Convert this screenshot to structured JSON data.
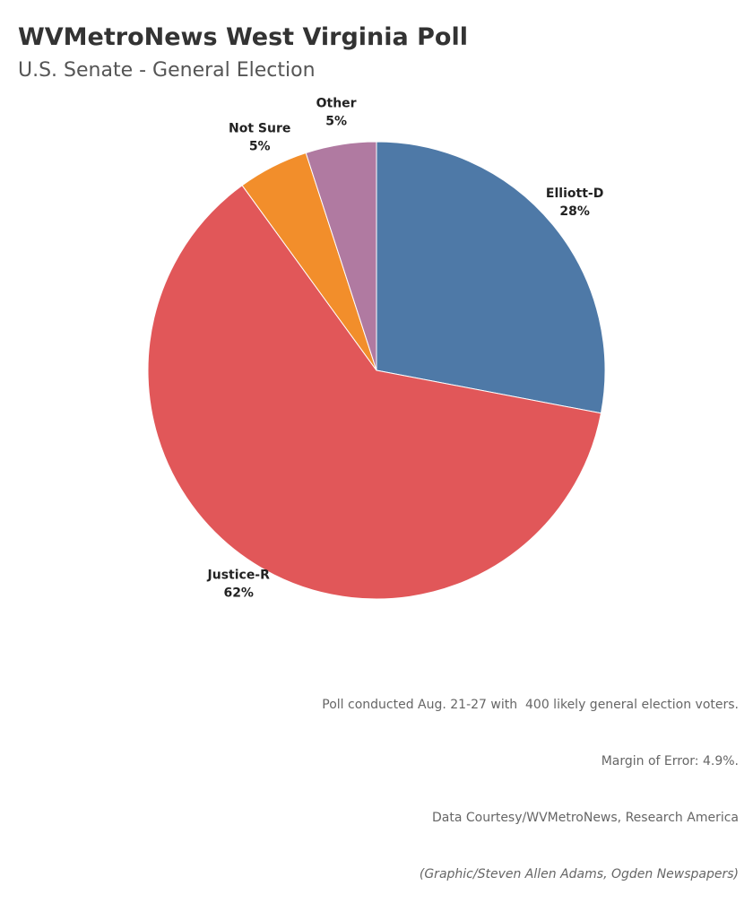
{
  "chart_data": {
    "type": "pie",
    "title": "WVMetroNews West Virginia Poll",
    "subtitle": "U.S. Senate - General Election",
    "categories": [
      "Elliott-D",
      "Justice-R",
      "Not Sure",
      "Other"
    ],
    "values": [
      28,
      62,
      5,
      5
    ],
    "value_labels": [
      "28%",
      "62%",
      "5%",
      "5%"
    ],
    "colors": [
      "#4e79a7",
      "#e15759",
      "#f28e2b",
      "#b07aa1"
    ],
    "notes": [
      "Poll conducted Aug. 21-27 with  400 likely general election voters.",
      "Margin of Error: 4.9%.",
      "Data Courtesy/WVMetroNews, Research America",
      "(Graphic/Steven Allen Adams, Ogden Newspapers)"
    ]
  }
}
